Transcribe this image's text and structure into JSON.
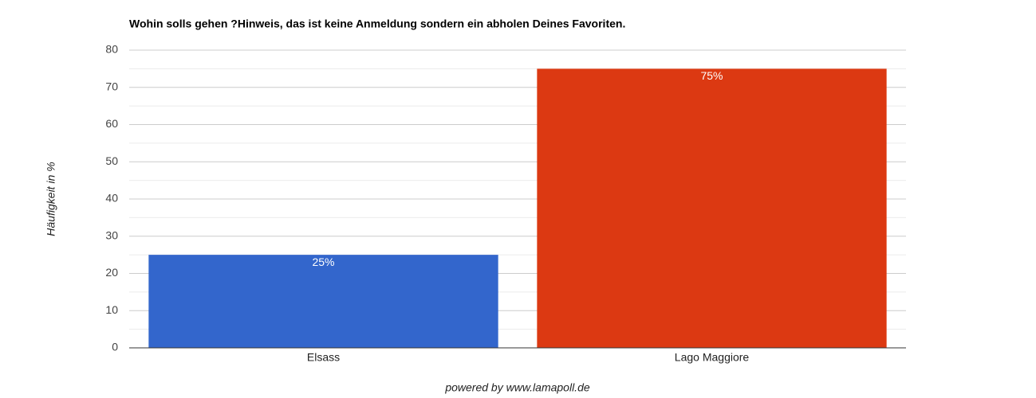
{
  "chart_data": {
    "type": "bar",
    "title": "Wohin solls gehen ?Hinweis, das ist keine Anmeldung sondern ein abholen Deines Favoriten.",
    "y_label": "Häufigkeit in %",
    "categories": [
      "Elsass",
      "Lago Maggiore"
    ],
    "values": [
      25,
      75
    ],
    "value_labels": [
      "25%",
      "75%"
    ],
    "colors": [
      "#3366cc",
      "#dc3912"
    ],
    "ylim": [
      0,
      80
    ],
    "yticks": [
      0,
      10,
      20,
      30,
      40,
      50,
      60,
      70,
      80
    ],
    "grid": true,
    "minor_grid": true
  },
  "footer": "powered by www.lamapoll.de"
}
